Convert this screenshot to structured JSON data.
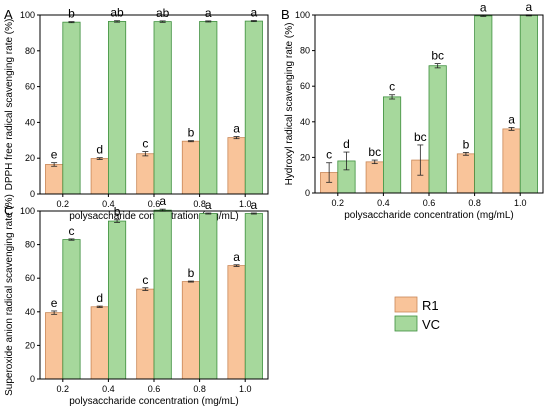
{
  "colors": {
    "r1": "#f9c49a",
    "vc": "#a6d89c",
    "r1_stroke": "#c98757",
    "vc_stroke": "#3e8f3e",
    "axis": "#000000"
  },
  "legend": {
    "items": [
      {
        "name": "R1",
        "color": "#f9c49a"
      },
      {
        "name": "VC",
        "color": "#a6d89c"
      }
    ]
  },
  "chart_data": [
    {
      "type": "bar",
      "panel_label": "A",
      "categories": [
        "0.2",
        "0.4",
        "0.6",
        "0.8",
        "1.0"
      ],
      "xlabel": "polysaccharide concentration (mg/mL)",
      "ylabel": "DPPH free radical scavenging  rate (%)",
      "ylim": [
        0,
        100
      ],
      "yticks": [
        0,
        20,
        40,
        60,
        80,
        100
      ],
      "series": [
        {
          "name": "R1",
          "values": [
            16.5,
            19.8,
            22.5,
            29.5,
            31.5
          ],
          "errors": [
            1.0,
            0.5,
            1.2,
            0.3,
            0.6
          ],
          "letters": [
            "e",
            "d",
            "c",
            "b",
            "a"
          ]
        },
        {
          "name": "VC",
          "values": [
            96.0,
            96.4,
            96.3,
            96.4,
            96.6
          ],
          "errors": [
            0.3,
            0.4,
            0.4,
            0.3,
            0.3
          ],
          "letters": [
            "b",
            "ab",
            "ab",
            "a",
            "a"
          ]
        }
      ]
    },
    {
      "type": "bar",
      "panel_label": "B",
      "categories": [
        "0.2",
        "0.4",
        "0.6",
        "0.8",
        "1.0"
      ],
      "xlabel": "polysaccharide concentration (mg/mL)",
      "ylabel": "Hydroxyl radical scavenging rate (%)",
      "ylim": [
        0,
        100
      ],
      "yticks": [
        0,
        20,
        40,
        60,
        80,
        100
      ],
      "series": [
        {
          "name": "R1",
          "values": [
            11.5,
            17.5,
            18.5,
            22.0,
            36.0
          ],
          "errors": [
            5.5,
            1.0,
            8.5,
            0.8,
            0.8
          ],
          "letters": [
            "c",
            "bc",
            "bc",
            "b",
            "a"
          ]
        },
        {
          "name": "VC",
          "values": [
            18.0,
            54.0,
            71.5,
            99.5,
            99.8
          ],
          "errors": [
            5.0,
            1.2,
            1.2,
            0.3,
            0.3
          ],
          "letters": [
            "d",
            "c",
            "bc",
            "a",
            "a"
          ]
        }
      ]
    },
    {
      "type": "bar",
      "panel_label": "C",
      "categories": [
        "0.2",
        "0.4",
        "0.6",
        "0.8",
        "1.0"
      ],
      "xlabel": "polysaccharide concentration (mg/mL)",
      "ylabel": "Superoxide anion radical scavenging rate (%)",
      "ylim": [
        0,
        100
      ],
      "yticks": [
        0,
        20,
        40,
        60,
        80,
        100
      ],
      "series": [
        {
          "name": "R1",
          "values": [
            39.5,
            43.0,
            53.5,
            58.0,
            67.5
          ],
          "errors": [
            1.0,
            0.4,
            0.8,
            0.3,
            0.5
          ],
          "letters": [
            "e",
            "d",
            "c",
            "b",
            "a"
          ]
        },
        {
          "name": "VC",
          "values": [
            83.0,
            94.0,
            100.5,
            98.5,
            98.5
          ],
          "errors": [
            0.4,
            0.8,
            0.6,
            0.3,
            0.3
          ],
          "letters": [
            "c",
            "b",
            "a",
            "a",
            "a"
          ]
        }
      ]
    }
  ]
}
